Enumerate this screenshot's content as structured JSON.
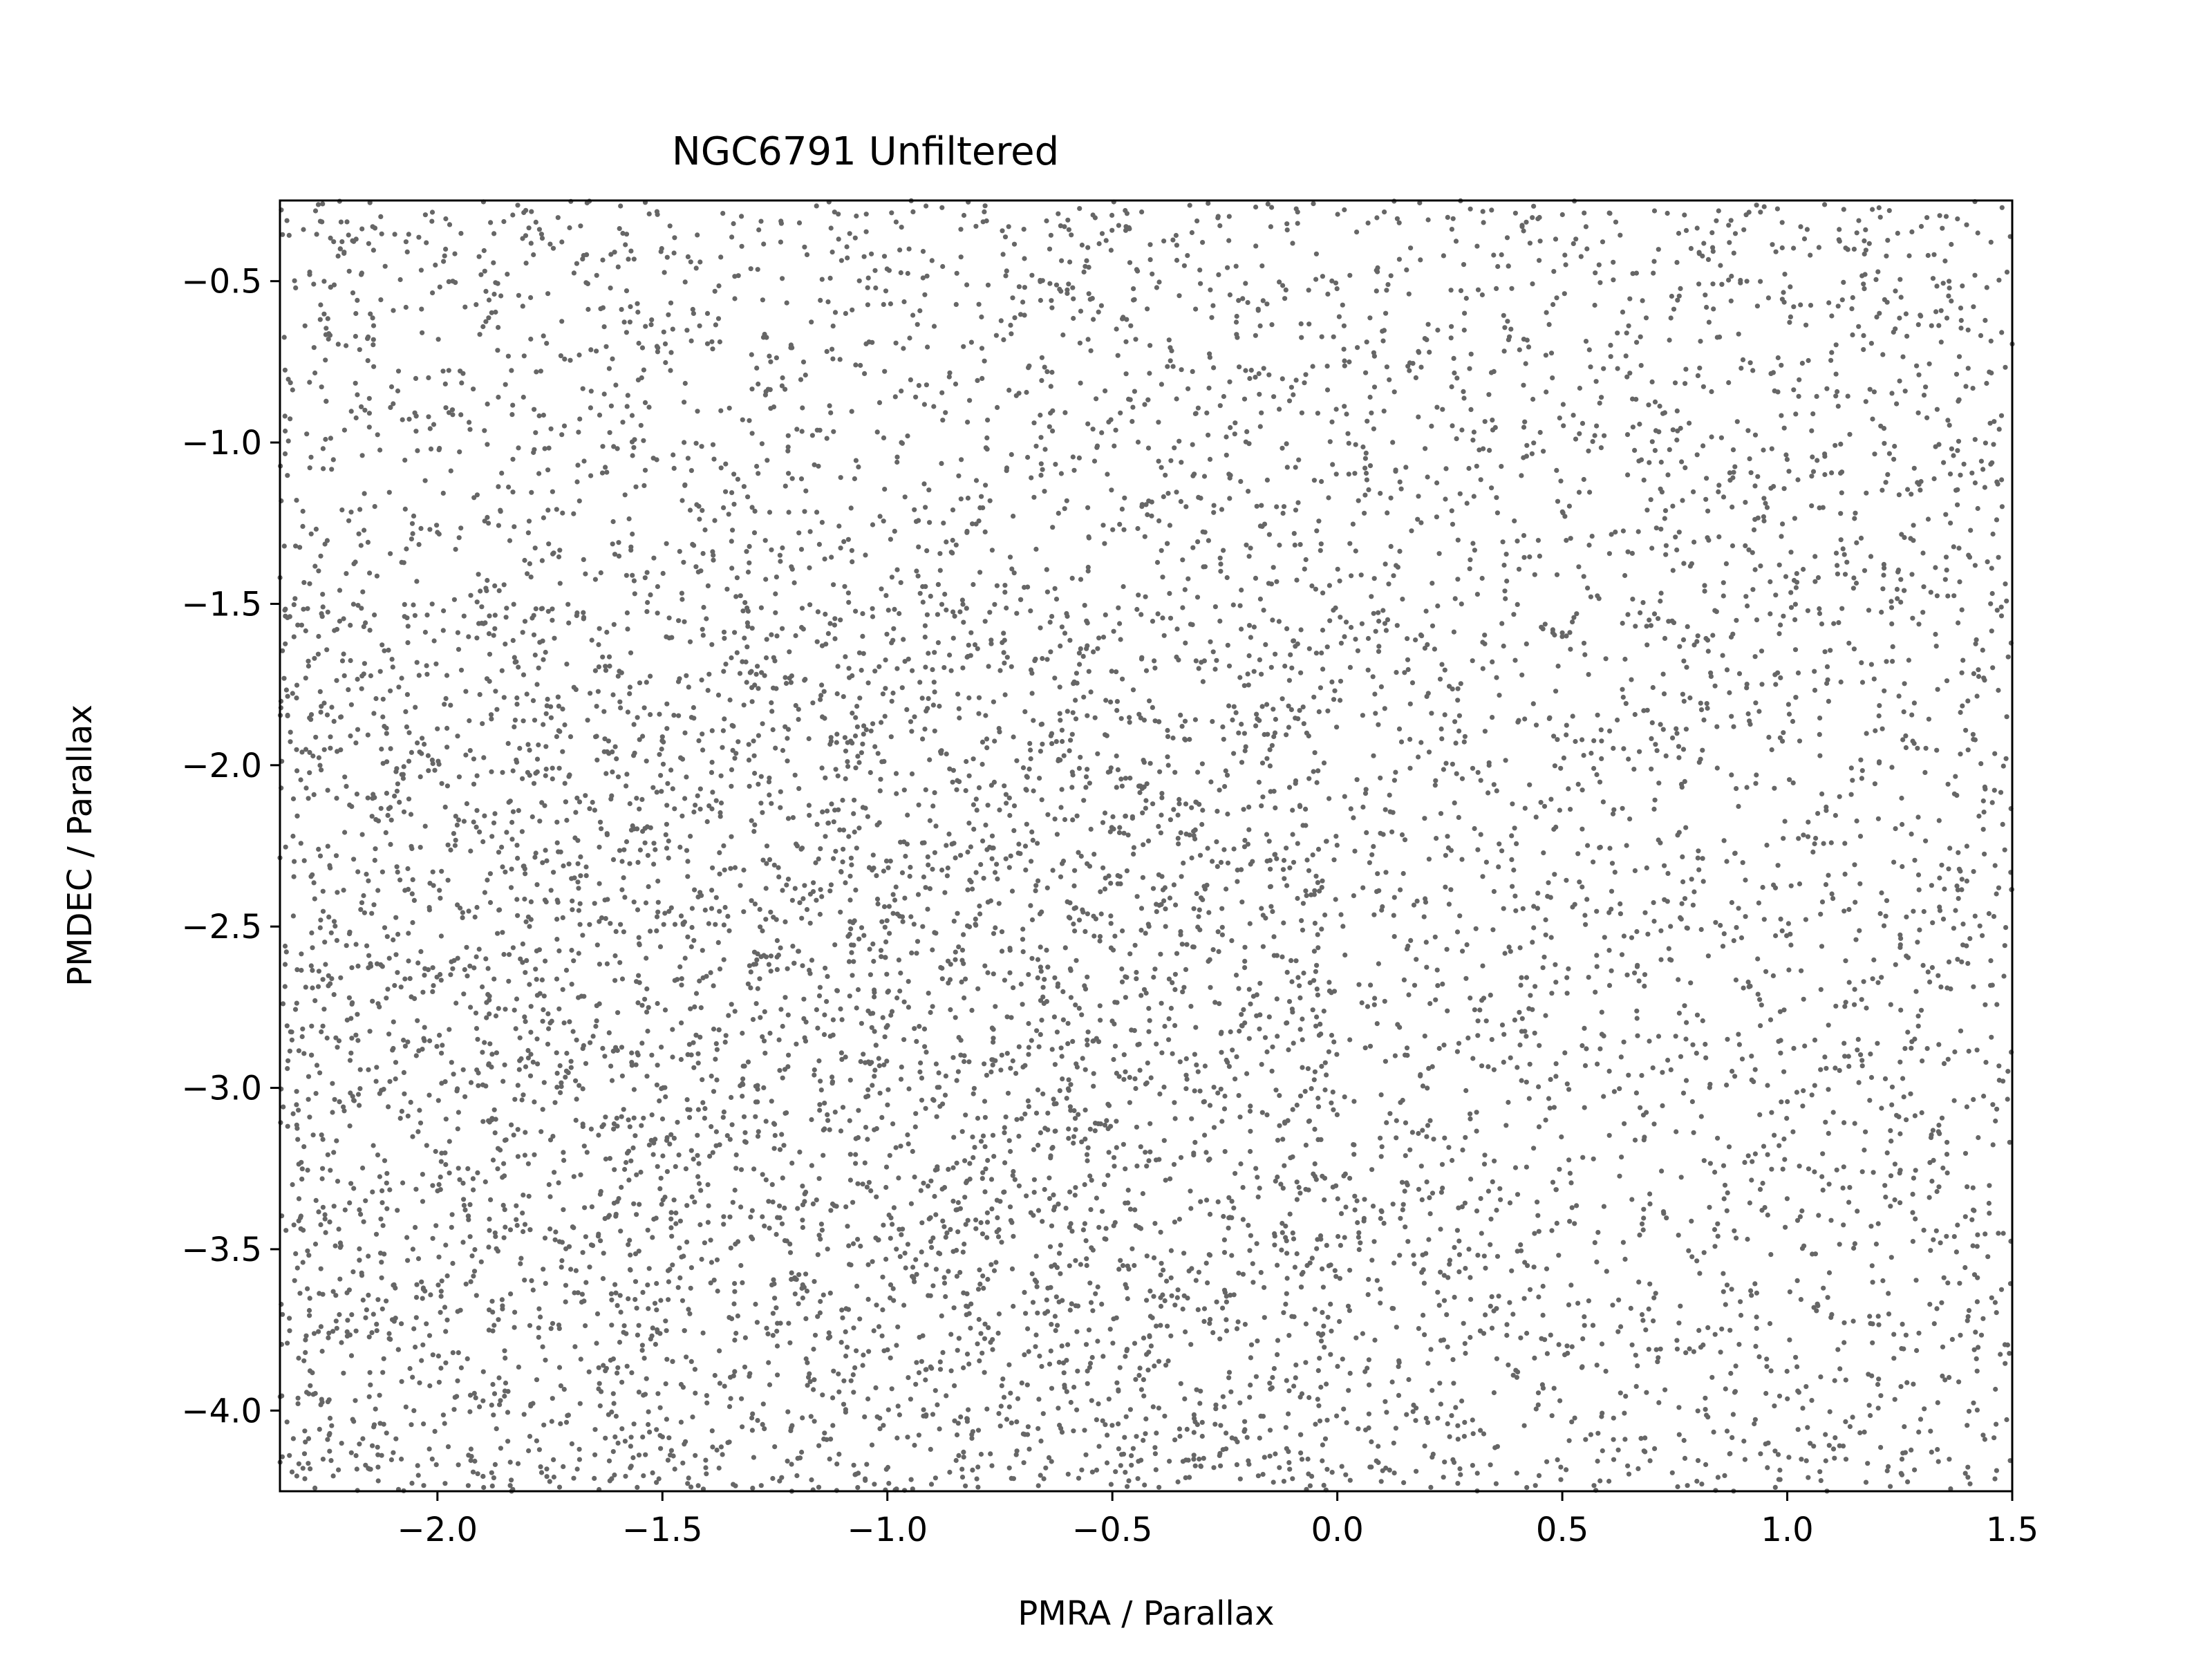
{
  "chart_data": {
    "type": "scatter",
    "title": "NGC6791 Unfiltered",
    "xlabel": "PMRA / Parallax",
    "ylabel": "PMDEC / Parallax",
    "xlim": [
      -2.35,
      1.5
    ],
    "ylim": [
      -4.25,
      -0.25
    ],
    "x_ticks": [
      -2.0,
      -1.5,
      -1.0,
      -0.5,
      0.0,
      0.5,
      1.0,
      1.5
    ],
    "x_tick_labels": [
      "−2.0",
      "−1.5",
      "−1.0",
      "−0.5",
      "0.0",
      "0.5",
      "1.0",
      "1.5"
    ],
    "y_ticks": [
      -0.5,
      -1.0,
      -1.5,
      -2.0,
      -2.5,
      -3.0,
      -3.5,
      -4.0
    ],
    "y_tick_labels": [
      "−0.5",
      "−1.0",
      "−1.5",
      "−2.0",
      "−2.5",
      "−3.0",
      "−3.5",
      "−4.0"
    ],
    "grid": false,
    "legend": "none",
    "marker_color": "#666666",
    "marker_style": "small filled circles",
    "approx_point_count": 9000,
    "density_regions": [
      {
        "x_range": [
          -2.35,
          1.5
        ],
        "y_range": [
          -4.25,
          -0.25
        ],
        "relative_density": 1.0
      },
      {
        "x_range": [
          -2.35,
          0.0
        ],
        "y_range": [
          -4.25,
          -1.5
        ],
        "relative_density": 1.6
      },
      {
        "x_range": [
          -1.5,
          -0.3
        ],
        "y_range": [
          -3.6,
          -1.8
        ],
        "relative_density": 1.4
      },
      {
        "x_range": [
          0.5,
          1.5
        ],
        "y_range": [
          -4.25,
          -2.0
        ],
        "relative_density": 0.6
      }
    ]
  }
}
